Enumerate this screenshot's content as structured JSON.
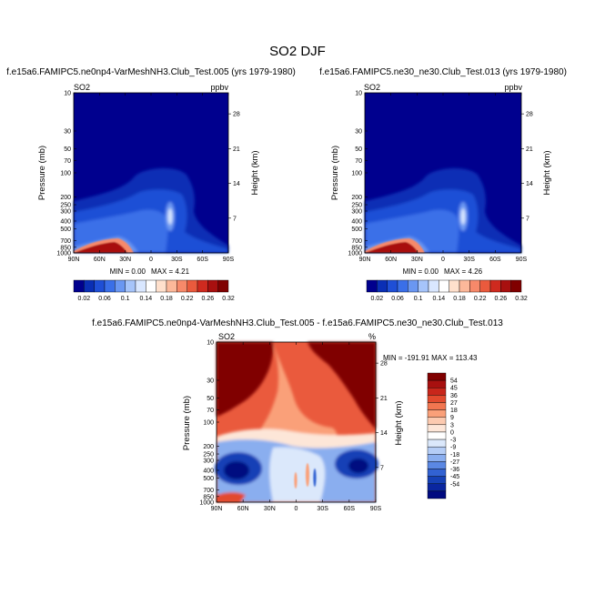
{
  "page": {
    "title": "SO2 DJF"
  },
  "chart_data": [
    {
      "type": "heatmap",
      "panel_id": "top-left",
      "title": "f.e15a6.FAMIPC5.ne0np4-VarMeshNH3.Club_Test.005 (yrs 1979-1980)",
      "variable": "SO2",
      "units": "ppbv",
      "x_ticks": [
        "90N",
        "60N",
        "30N",
        "0",
        "30S",
        "60S",
        "90S"
      ],
      "y_ticks": [
        "10",
        "30",
        "50",
        "70",
        "100",
        "200",
        "250",
        "300",
        "400",
        "500",
        "700",
        "850",
        "1000"
      ],
      "right_ticks": [
        "28",
        "21",
        "14",
        "7"
      ],
      "ylabel": "Pressure (mb)",
      "ylabel_right": "Height (km)",
      "min_text": "MIN =   0.00",
      "max_text": "MAX =   4.21",
      "min": 0.0,
      "max": 4.21,
      "x": [
        -90,
        90
      ],
      "y": [
        1000,
        10
      ],
      "colorbar_labels": [
        "0.02",
        "0.06",
        "0.1",
        "0.14",
        "0.18",
        "0.22",
        "0.26",
        "0.32"
      ],
      "colorbar_orientation": "horizontal"
    },
    {
      "type": "heatmap",
      "panel_id": "top-right",
      "title": "f.e15a6.FAMIPC5.ne30_ne30.Club_Test.013 (yrs 1979-1980)",
      "variable": "SO2",
      "units": "ppbv",
      "x_ticks": [
        "90N",
        "60N",
        "30N",
        "0",
        "30S",
        "60S",
        "90S"
      ],
      "y_ticks": [
        "10",
        "30",
        "50",
        "70",
        "100",
        "200",
        "250",
        "300",
        "400",
        "500",
        "700",
        "850",
        "1000"
      ],
      "right_ticks": [
        "28",
        "21",
        "14",
        "7"
      ],
      "ylabel": "Pressure (mb)",
      "ylabel_right": "Height (km)",
      "min_text": "MIN =   0.00",
      "max_text": "MAX =   4.26",
      "min": 0.0,
      "max": 4.26,
      "x": [
        -90,
        90
      ],
      "y": [
        1000,
        10
      ],
      "colorbar_labels": [
        "0.02",
        "0.06",
        "0.1",
        "0.14",
        "0.18",
        "0.22",
        "0.26",
        "0.32"
      ],
      "colorbar_orientation": "horizontal"
    },
    {
      "type": "heatmap",
      "panel_id": "bottom-diff",
      "title": "f.e15a6.FAMIPC5.ne0np4-VarMeshNH3.Club_Test.005 - f.e15a6.FAMIPC5.ne30_ne30.Club_Test.013",
      "variable": "SO2",
      "units": "%",
      "x_ticks": [
        "90N",
        "60N",
        "30N",
        "0",
        "30S",
        "60S",
        "90S"
      ],
      "y_ticks": [
        "10",
        "30",
        "50",
        "70",
        "100",
        "200",
        "250",
        "300",
        "400",
        "500",
        "700",
        "850",
        "1000"
      ],
      "right_ticks": [
        "28",
        "21",
        "14",
        "7"
      ],
      "ylabel": "Pressure (mb)",
      "ylabel_right": "Height (km)",
      "minmax_text": "MIN = -191.91  MAX = 113.43",
      "min": -191.91,
      "max": 113.43,
      "x": [
        -90,
        90
      ],
      "y": [
        1000,
        10
      ],
      "colorbar_labels": [
        "54",
        "45",
        "36",
        "27",
        "18",
        "9",
        "3",
        "0",
        "-3",
        "-9",
        "-18",
        "-27",
        "-36",
        "-45",
        "-54"
      ],
      "colorbar_orientation": "vertical"
    }
  ],
  "colors": {
    "seq": [
      "#00008e",
      "#0a2fb5",
      "#1f4fd6",
      "#3a6fe8",
      "#6a97f2",
      "#a6c4fa",
      "#d9e7ff",
      "#ffffff",
      "#ffe0cc",
      "#fcb89a",
      "#f7896a",
      "#ea5a3d",
      "#cf2a1f",
      "#a8100f",
      "#800000"
    ],
    "div": [
      "#800000",
      "#a8100f",
      "#c8261b",
      "#e24a2e",
      "#f27650",
      "#faa079",
      "#fccab0",
      "#fde6d8",
      "#ffffff",
      "#dbe8fb",
      "#b5cdf6",
      "#8aaeef",
      "#5b88e3",
      "#3262d2",
      "#1641b6",
      "#0a26a0",
      "#000a80"
    ]
  }
}
